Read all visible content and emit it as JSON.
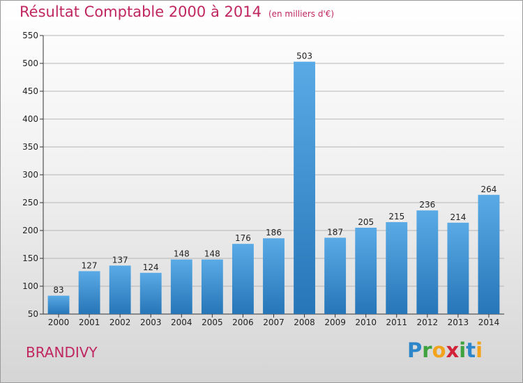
{
  "header": {
    "title": "Résultat Comptable 2000 à 2014",
    "subtitle": "(en milliers d'€)"
  },
  "footer": {
    "place": "BRANDIVY",
    "logo_letters": [
      "P",
      "r",
      "o",
      "x",
      "i",
      "t",
      "i"
    ],
    "logo_colors": [
      "#2c86c9",
      "#3ea23e",
      "#f2a31b",
      "#d1233a",
      "#3ea23e",
      "#2c86c9",
      "#f2a31b"
    ]
  },
  "colors": {
    "title": "#c0265f",
    "bar_top": "#5aaae6",
    "bar_bottom": "#2676b8",
    "grid": "#b5b5b5"
  },
  "chart_data": {
    "type": "bar",
    "title": "Résultat Comptable 2000 à 2014",
    "subtitle": "(en milliers d'€)",
    "xlabel": "",
    "ylabel": "",
    "categories": [
      "2000",
      "2001",
      "2002",
      "2003",
      "2004",
      "2005",
      "2006",
      "2007",
      "2008",
      "2009",
      "2010",
      "2011",
      "2012",
      "2013",
      "2014"
    ],
    "values": [
      83,
      127,
      137,
      124,
      148,
      148,
      176,
      186,
      503,
      187,
      205,
      215,
      236,
      214,
      264
    ],
    "ylim": [
      50,
      550
    ],
    "yticks": [
      50,
      100,
      150,
      200,
      250,
      300,
      350,
      400,
      450,
      500,
      550
    ],
    "grid": true,
    "legend": "none"
  }
}
